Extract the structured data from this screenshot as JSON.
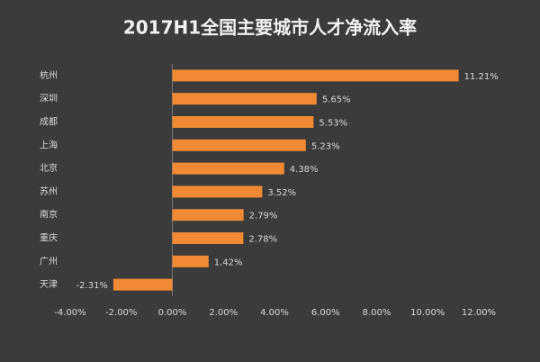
{
  "chart_data": {
    "type": "bar",
    "orientation": "horizontal",
    "title": "2017H1全国主要城市人才净流入率",
    "categories": [
      "杭州",
      "深圳",
      "成都",
      "上海",
      "北京",
      "苏州",
      "南京",
      "重庆",
      "广州",
      "天津"
    ],
    "values": [
      11.21,
      5.65,
      5.53,
      5.23,
      4.38,
      3.52,
      2.79,
      2.78,
      1.42,
      -2.31
    ],
    "value_labels": [
      "11.21%",
      "5.65%",
      "5.53%",
      "5.23%",
      "4.38%",
      "3.52%",
      "2.79%",
      "2.78%",
      "1.42%",
      "-2.31%"
    ],
    "color": "#f08a34",
    "xlim": [
      -4,
      12
    ],
    "xticks": [
      {
        "value": -4,
        "label": "-4.00%"
      },
      {
        "value": -2,
        "label": "-2.00%"
      },
      {
        "value": 0,
        "label": "0.00%"
      },
      {
        "value": 2,
        "label": "2.00%"
      },
      {
        "value": 4,
        "label": "4.00%"
      },
      {
        "value": 6,
        "label": "6.00%"
      },
      {
        "value": 8,
        "label": "8.00%"
      },
      {
        "value": 10,
        "label": "10.00%"
      },
      {
        "value": 12,
        "label": "12.00%"
      }
    ],
    "grid": false
  }
}
